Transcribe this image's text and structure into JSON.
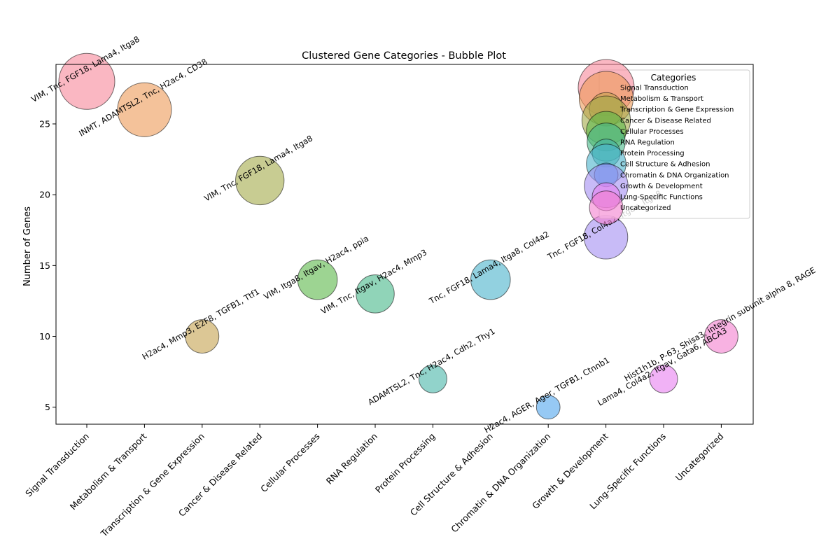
{
  "chart_data": {
    "type": "scatter",
    "subtype": "bubble",
    "title": "Clustered Gene Categories - Bubble Plot",
    "xlabel": "",
    "ylabel": "Number of Genes",
    "categories": [
      "Signal Transduction",
      "Metabolism & Transport",
      "Transcription & Gene Expression",
      "Cancer & Disease Related",
      "Cellular Processes",
      "RNA Regulation",
      "Protein Processing",
      "Cell Structure & Adhesion",
      "Chromatin & DNA Organization",
      "Growth & Development",
      "Lung-Specific Functions",
      "Uncategorized"
    ],
    "values": [
      28,
      26,
      10,
      21,
      14,
      13,
      7,
      14,
      5,
      17,
      7,
      10
    ],
    "annotations": [
      "VIM, Tnc, FGF18, Lama4, Itga8",
      "INMT, ADAMTSL2, Tnc, H2ac4, CD38",
      "H2ac4, Mmp3, E2F8, TGFB1, Ttf1",
      "VIM, Tnc, FGF18, Lama4, Itga8",
      "VIM, Itga8, Itgav, H2ac4, ppia",
      "VIM, Tnc, Itgav, H2ac4, Mmp3",
      "ADAMTSL2, Tnc, H2ac4, Cdh2, Thy1",
      "Tnc, FGF18, Lama4, Itga8, Col4a2",
      "H2ac4, AGER, Ager, TGFB1, Ctnnb1",
      "Tnc, FGF18, Col4a2, Itgav, Itga8",
      "Lama4, Col4a2, Itgav, Gata6, ABCA3",
      "Hist1h1b, P-63, Shisa3, integrin subunit alpha 8, RAGE"
    ],
    "colors": [
      "#f7879a",
      "#ec9956",
      "#c5a24f",
      "#a3aa4a",
      "#5cb84a",
      "#46b888",
      "#47b5a9",
      "#4ab3cc",
      "#50a5ec",
      "#a48ef1",
      "#e87ef0",
      "#f47fcf"
    ],
    "yticks": [
      5,
      10,
      15,
      20,
      25
    ],
    "ylim": [
      3.8,
      29.2
    ],
    "grid": false,
    "legend": {
      "title": "Categories",
      "position": "top-right"
    }
  }
}
